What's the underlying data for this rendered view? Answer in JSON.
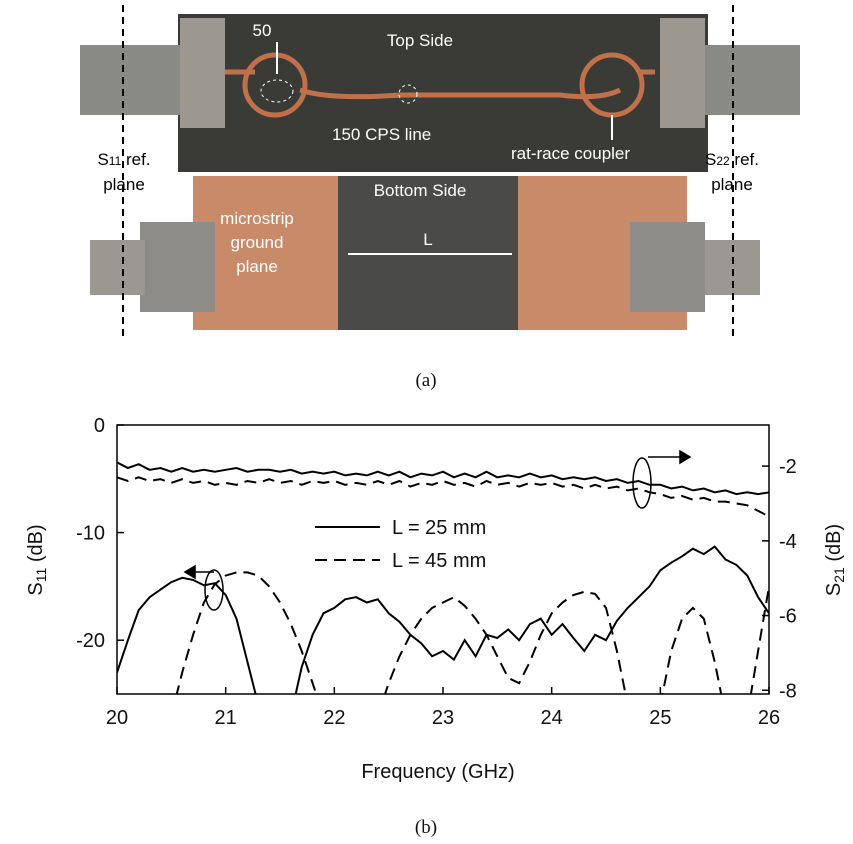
{
  "photo": {
    "top_side": "Top Side",
    "port_impedance": "50",
    "cps_line": "150  CPS line",
    "coupler": "rat-race coupler",
    "s11_plane": {
      "base": "S",
      "sub": "11",
      "rest": " ref.",
      "line2": "plane"
    },
    "s22_plane": {
      "base": "S",
      "sub": "22",
      "rest": " ref.",
      "line2": "plane"
    },
    "bottom_side": "Bottom Side",
    "ground": [
      "microstrip",
      "ground",
      "plane"
    ],
    "length": "L",
    "caption": "(a)"
  },
  "chart_data": {
    "type": "line",
    "caption": "(b)",
    "x_label": "Frequency (GHz)",
    "y_label": {
      "base": "S",
      "sub": "11",
      "rest": " (dB)"
    },
    "y2_label": {
      "base": "S",
      "sub": "21",
      "rest": " (dB)"
    },
    "x": [
      20.0,
      20.1,
      20.2,
      20.3,
      20.4,
      20.5,
      20.6,
      20.7,
      20.8,
      20.9,
      21.0,
      21.1,
      21.2,
      21.3,
      21.4,
      21.5,
      21.6,
      21.7,
      21.8,
      21.9,
      22.0,
      22.1,
      22.2,
      22.3,
      22.4,
      22.5,
      22.6,
      22.7,
      22.8,
      22.9,
      23.0,
      23.1,
      23.2,
      23.3,
      23.4,
      23.5,
      23.6,
      23.7,
      23.8,
      23.9,
      24.0,
      24.1,
      24.2,
      24.3,
      24.4,
      24.5,
      24.6,
      24.7,
      24.8,
      24.9,
      25.0,
      25.1,
      25.2,
      25.3,
      25.4,
      25.5,
      25.6,
      25.7,
      25.8,
      25.9,
      26.0
    ],
    "xlim": [
      20,
      26
    ],
    "xticks": [
      20,
      21,
      22,
      23,
      24,
      25,
      26
    ],
    "ylim": [
      -25,
      0
    ],
    "yticks": [
      0,
      -10,
      -20
    ],
    "y2lim": [
      -8.1,
      -0.9
    ],
    "y2ticks": [
      -2,
      -4,
      -6,
      -8
    ],
    "series": [
      {
        "name": "L = 25 mm",
        "color": "#000000",
        "dash": false,
        "axis": "y",
        "values": [
          -23,
          -20,
          -17.2,
          -16,
          -15.3,
          -14.6,
          -14.2,
          -14.4,
          -14.9,
          -14.7,
          -15.8,
          -18,
          -22,
          -26,
          null,
          null,
          -27,
          -22.5,
          -19.5,
          -17.5,
          -17,
          -16.2,
          -16,
          -16.5,
          -16.2,
          -17.5,
          -18.3,
          -19.5,
          -20.3,
          -21.5,
          -21,
          -21.8,
          -20,
          -21.5,
          -19.5,
          -19.8,
          -19,
          -20,
          -18.5,
          -18,
          -19.5,
          -18.5,
          -19.8,
          -21,
          -19.5,
          -20,
          -18.2,
          -17,
          -16,
          -15,
          -13.5,
          -12.8,
          -12.2,
          -11.5,
          -12,
          -11.3,
          -12.5,
          -13,
          -14,
          -16,
          -17.5
        ]
      },
      {
        "name": "L = 45 mm",
        "color": "#000000",
        "dash": true,
        "axis": "y",
        "values": [
          null,
          null,
          null,
          null,
          null,
          -27,
          -23,
          -19.5,
          -16.5,
          -14.8,
          -14,
          -13.7,
          -13.7,
          -14,
          -15,
          -16.5,
          -18.5,
          -21,
          -24,
          -27,
          null,
          null,
          null,
          null,
          -27,
          -24,
          -21.5,
          -19.5,
          -18,
          -17,
          -16.5,
          -16,
          -16.8,
          -18,
          -19.5,
          -21.5,
          -23.5,
          -24,
          -22,
          -19.5,
          -17.5,
          -16.5,
          -15.8,
          -15.5,
          -15.7,
          -17,
          -21,
          -26,
          null,
          null,
          -26,
          -21,
          -18,
          -17,
          -18,
          -22,
          -27,
          null,
          -27,
          -21,
          -15
        ]
      },
      {
        "color": "#000000",
        "dash": false,
        "axis": "y2",
        "values": [
          -1.9,
          -2.05,
          -1.95,
          -2.1,
          -2.05,
          -2.15,
          -2.05,
          -2.15,
          -2.1,
          -2.15,
          -2.1,
          -2.05,
          -2.15,
          -2.1,
          -2.1,
          -2.15,
          -2.1,
          -2.2,
          -2.15,
          -2.2,
          -2.15,
          -2.25,
          -2.2,
          -2.25,
          -2.15,
          -2.25,
          -2.15,
          -2.3,
          -2.2,
          -2.25,
          -2.15,
          -2.3,
          -2.2,
          -2.3,
          -2.15,
          -2.3,
          -2.25,
          -2.3,
          -2.2,
          -2.3,
          -2.25,
          -2.35,
          -2.3,
          -2.35,
          -2.3,
          -2.4,
          -2.35,
          -2.45,
          -2.4,
          -2.5,
          -2.5,
          -2.6,
          -2.55,
          -2.65,
          -2.6,
          -2.7,
          -2.65,
          -2.75,
          -2.7,
          -2.75,
          -2.7
        ]
      },
      {
        "color": "#000000",
        "dash": true,
        "axis": "y2",
        "values": [
          -2.3,
          -2.4,
          -2.3,
          -2.4,
          -2.35,
          -2.45,
          -2.35,
          -2.45,
          -2.4,
          -2.5,
          -2.45,
          -2.5,
          -2.4,
          -2.45,
          -2.35,
          -2.45,
          -2.4,
          -2.5,
          -2.4,
          -2.45,
          -2.4,
          -2.5,
          -2.45,
          -2.5,
          -2.4,
          -2.5,
          -2.4,
          -2.55,
          -2.45,
          -2.5,
          -2.4,
          -2.5,
          -2.45,
          -2.55,
          -2.4,
          -2.5,
          -2.45,
          -2.55,
          -2.45,
          -2.5,
          -2.45,
          -2.55,
          -2.5,
          -2.6,
          -2.5,
          -2.6,
          -2.55,
          -2.65,
          -2.6,
          -2.7,
          -2.75,
          -2.85,
          -2.8,
          -2.9,
          -2.85,
          -2.95,
          -2.95,
          -3.0,
          -3.05,
          -3.2,
          -3.35
        ]
      }
    ]
  }
}
